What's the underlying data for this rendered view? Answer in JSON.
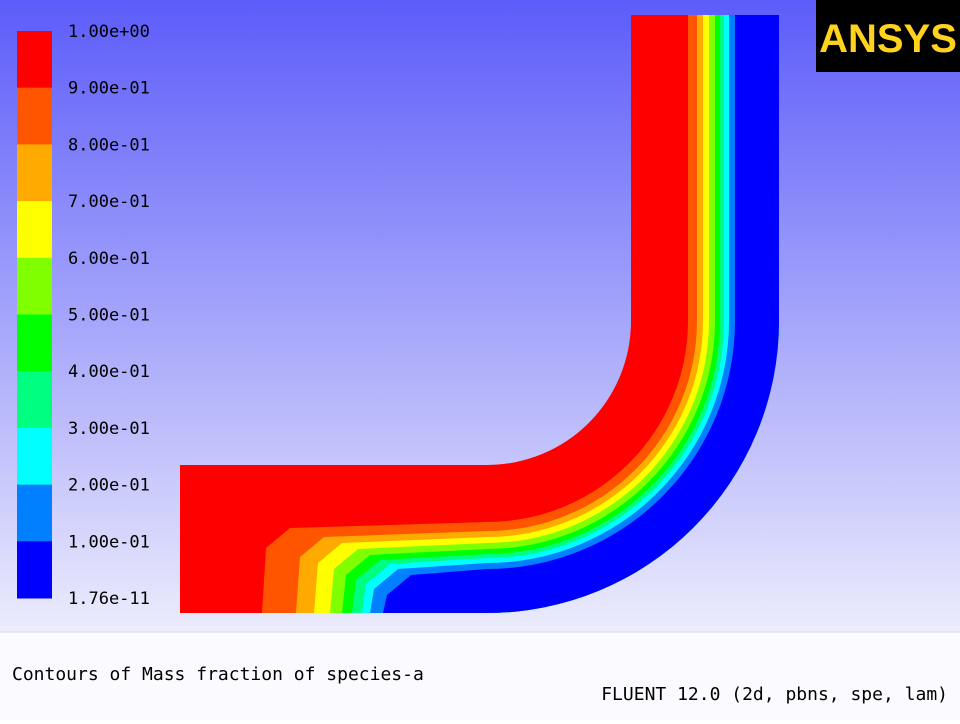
{
  "logo": {
    "text": "ANSYS"
  },
  "colorbar": {
    "labels": [
      "1.00e+00",
      "9.00e-01",
      "8.00e-01",
      "7.00e-01",
      "6.00e-01",
      "5.00e-01",
      "4.00e-01",
      "3.00e-01",
      "2.00e-01",
      "1.00e-01",
      "1.76e-11"
    ],
    "colors": [
      "#ff0000",
      "#ff5500",
      "#ffaa00",
      "#ffff00",
      "#80ff00",
      "#00ff00",
      "#00ff80",
      "#00ffff",
      "#0080ff",
      "#0000ff"
    ]
  },
  "caption": "Contours of Mass fraction of species-a",
  "footer": "FLUENT 12.0 (2d, pbns, spe, lam)"
}
